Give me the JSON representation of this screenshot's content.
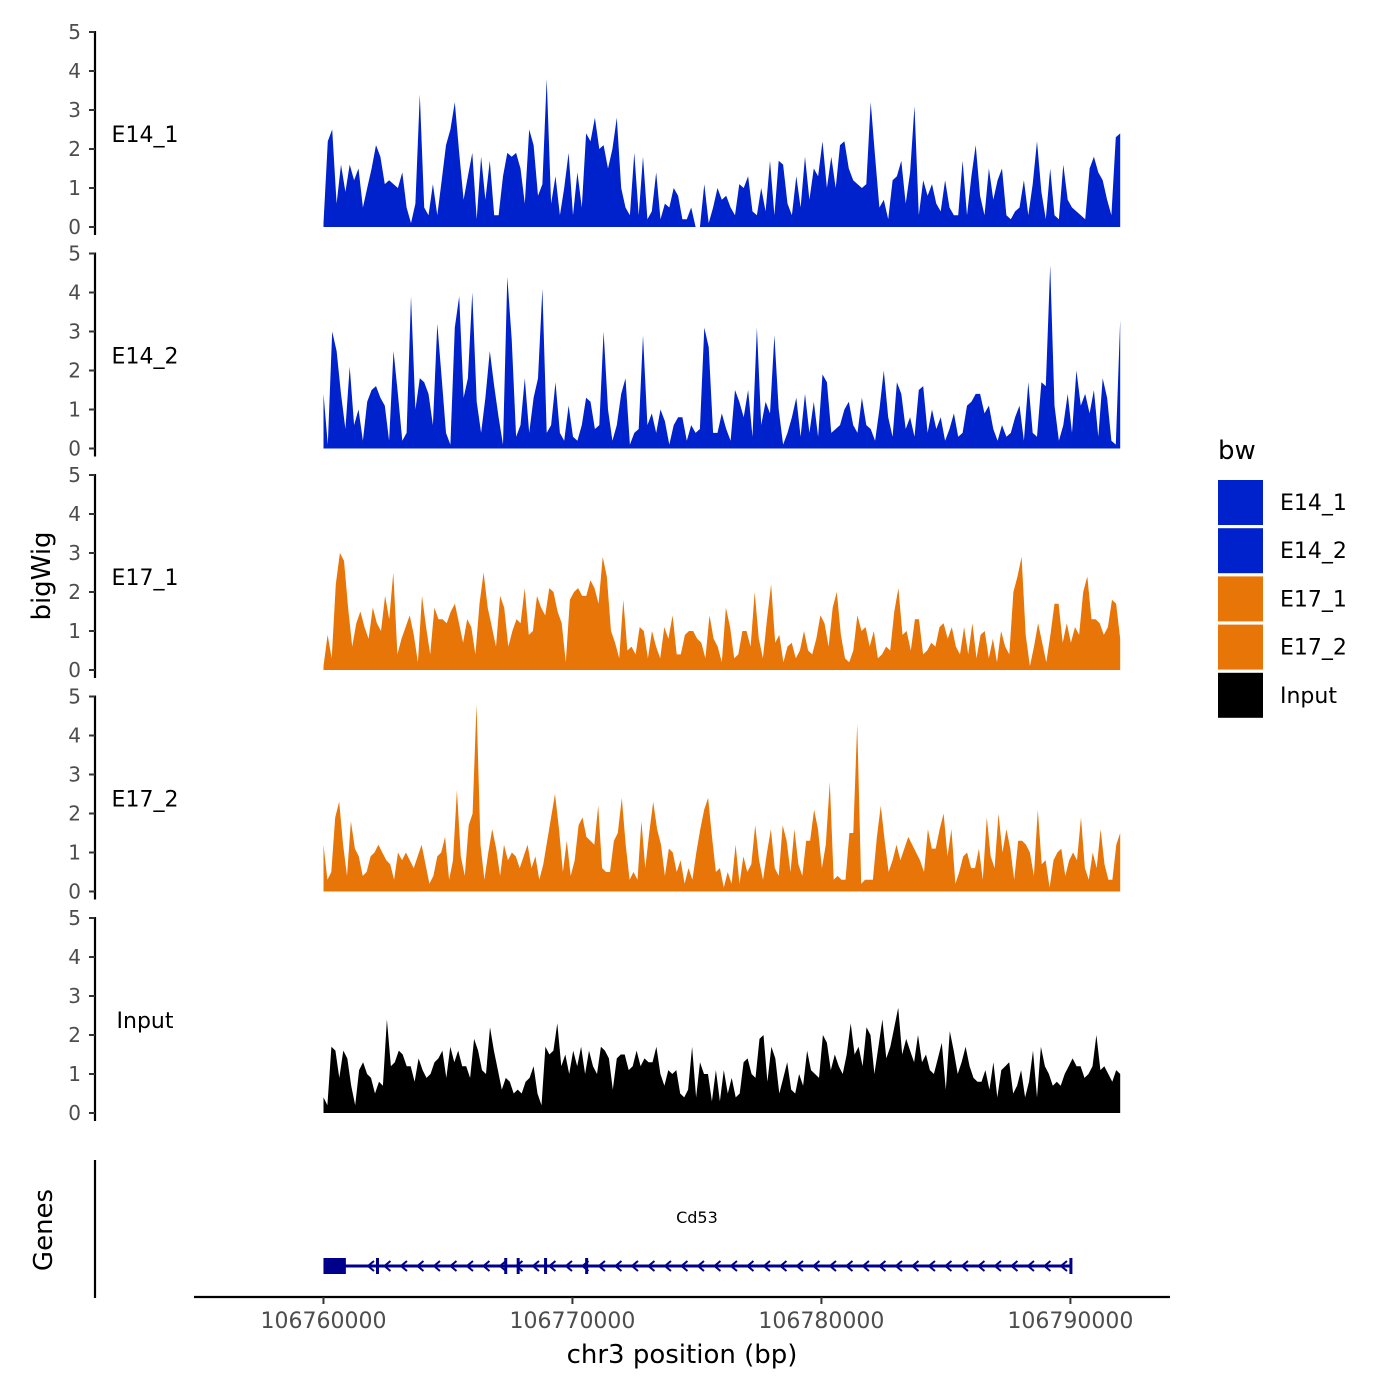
{
  "chart_data": {
    "type": "area",
    "chromosome": "chr3",
    "xlabel": "chr3 position (bp)",
    "ylabel": "bigWig",
    "genes_label": "Genes",
    "xlim": [
      106754800,
      106794000
    ],
    "x_ticks": [
      106760000,
      106770000,
      106780000,
      106790000
    ],
    "x_tick_labels": [
      "106760000",
      "106770000",
      "106780000",
      "106790000"
    ],
    "ylim": [
      0,
      5
    ],
    "y_ticks": [
      0,
      1,
      2,
      3,
      4,
      5
    ],
    "y_tick_labels": [
      "0",
      "1",
      "2",
      "3",
      "4",
      "5"
    ],
    "x_start": 106760000,
    "x_end": 106792000,
    "legend": {
      "title": "bw",
      "entries": [
        {
          "label": "E14_1",
          "color": "#0022CC"
        },
        {
          "label": "E14_2",
          "color": "#0022CC"
        },
        {
          "label": "E17_1",
          "color": "#E87507"
        },
        {
          "label": "E17_2",
          "color": "#E87507"
        },
        {
          "label": "Input",
          "color": "#000000"
        }
      ]
    },
    "series": [
      {
        "name": "E14_1",
        "color": "#0022CC",
        "values": [
          0.1,
          2.2,
          2.5,
          0.6,
          1.6,
          0.9,
          1.6,
          1.2,
          1.5,
          0.5,
          1.0,
          1.5,
          2.1,
          1.8,
          1.1,
          1.2,
          1.1,
          1.0,
          1.4,
          0.5,
          0.1,
          0.6,
          3.4,
          0.5,
          0.3,
          1.1,
          0.3,
          1.2,
          2.1,
          2.5,
          3.2,
          1.9,
          0.7,
          1.3,
          1.9,
          0.2,
          1.8,
          0.7,
          1.7,
          0.3,
          0.3,
          1.3,
          1.9,
          1.8,
          1.9,
          1.5,
          0.6,
          2.5,
          2.1,
          0.8,
          1.1,
          3.8,
          0.6,
          1.3,
          0.3,
          1.0,
          1.9,
          0.3,
          1.4,
          0.5,
          2.4,
          2.2,
          2.8,
          2.0,
          2.1,
          1.5,
          2.0,
          2.8,
          1.0,
          0.5,
          0.3,
          1.9,
          0.3,
          1.8,
          0.2,
          0.4,
          1.4,
          0.2,
          0.6,
          0.5,
          1.0,
          0.8,
          0.2,
          0.2,
          0.5,
          0.0,
          0.0,
          1.1,
          0.1,
          0.5,
          1.0,
          0.7,
          0.8,
          0.5,
          0.3,
          1.1,
          1.0,
          1.3,
          0.4,
          0.3,
          1.0,
          0.4,
          1.7,
          0.3,
          1.7,
          1.6,
          0.6,
          0.3,
          1.3,
          0.5,
          1.8,
          0.7,
          1.5,
          1.3,
          2.2,
          1.0,
          1.8,
          1.0,
          2.1,
          2.2,
          1.5,
          1.2,
          1.1,
          1.0,
          1.1,
          3.2,
          1.8,
          0.5,
          0.7,
          0.2,
          1.2,
          1.3,
          1.7,
          0.6,
          1.4,
          3.1,
          0.3,
          1.2,
          0.8,
          1.1,
          0.6,
          0.4,
          1.2,
          0.5,
          0.3,
          0.3,
          1.7,
          0.3,
          1.3,
          2.1,
          0.8,
          0.3,
          1.5,
          0.7,
          1.2,
          1.5,
          0.3,
          0.2,
          0.4,
          0.5,
          1.2,
          0.3,
          1.1,
          2.2,
          0.9,
          0.2,
          1.5,
          0.3,
          0.2,
          1.6,
          0.7,
          0.5,
          0.4,
          0.3,
          0.2,
          1.5,
          1.8,
          1.4,
          1.2,
          0.7,
          0.3,
          2.3,
          2.4
        ]
      },
      {
        "name": "E14_2",
        "color": "#0022CC",
        "values": [
          1.4,
          0.1,
          3.0,
          2.5,
          1.4,
          0.5,
          2.1,
          0.6,
          1.0,
          0.2,
          1.2,
          1.5,
          1.6,
          1.3,
          1.1,
          0.2,
          2.5,
          1.4,
          0.2,
          0.4,
          3.9,
          1.0,
          1.8,
          1.7,
          1.4,
          0.6,
          3.2,
          1.8,
          0.4,
          0.1,
          3.1,
          3.9,
          1.3,
          1.8,
          4.0,
          1.2,
          0.4,
          1.3,
          2.5,
          1.6,
          0.8,
          0.1,
          4.4,
          2.8,
          0.3,
          0.6,
          1.8,
          0.4,
          1.3,
          1.8,
          4.1,
          0.4,
          0.6,
          1.7,
          0.4,
          0.2,
          1.1,
          0.3,
          0.2,
          0.6,
          1.3,
          1.2,
          0.5,
          0.6,
          3.0,
          1.0,
          0.2,
          0.6,
          1.4,
          1.8,
          0.1,
          0.4,
          0.5,
          2.9,
          0.6,
          0.9,
          0.4,
          1.0,
          0.7,
          0.1,
          0.6,
          0.8,
          0.8,
          0.2,
          0.6,
          0.4,
          0.5,
          3.1,
          2.6,
          0.4,
          0.4,
          0.9,
          0.5,
          0.2,
          1.5,
          1.2,
          0.8,
          1.5,
          0.3,
          3.1,
          0.6,
          1.2,
          0.9,
          2.9,
          1.0,
          0.1,
          0.4,
          0.8,
          1.3,
          0.3,
          1.4,
          0.4,
          1.2,
          0.3,
          1.9,
          1.7,
          0.4,
          0.5,
          0.6,
          1.0,
          1.2,
          0.6,
          0.4,
          1.3,
          0.6,
          0.5,
          0.2,
          1.0,
          2.0,
          0.8,
          0.3,
          1.7,
          1.4,
          0.5,
          0.8,
          0.3,
          1.5,
          1.6,
          0.4,
          1.0,
          0.5,
          0.8,
          0.2,
          0.5,
          0.9,
          0.3,
          0.4,
          1.1,
          1.2,
          1.4,
          1.4,
          0.9,
          1.1,
          0.5,
          0.2,
          0.6,
          0.3,
          0.4,
          0.8,
          1.1,
          0.2,
          1.7,
          0.4,
          0.3,
          1.7,
          1.6,
          4.7,
          1.1,
          0.2,
          0.6,
          1.4,
          0.4,
          2.0,
          1.1,
          1.4,
          0.9,
          1.5,
          0.3,
          1.8,
          1.3,
          0.2,
          0.1,
          3.3
        ]
      },
      {
        "name": "E17_1",
        "color": "#E87507",
        "values": [
          0.1,
          0.9,
          0.3,
          2.2,
          3.0,
          2.8,
          1.6,
          0.6,
          1.2,
          1.5,
          1.1,
          0.8,
          1.6,
          1.2,
          1.0,
          1.9,
          1.3,
          2.5,
          0.4,
          0.8,
          1.1,
          1.4,
          0.9,
          0.2,
          1.9,
          1.1,
          0.4,
          1.6,
          1.3,
          1.3,
          1.2,
          1.5,
          1.7,
          1.2,
          0.7,
          1.3,
          1.1,
          0.4,
          1.7,
          2.5,
          1.6,
          1.1,
          0.6,
          1.9,
          1.6,
          0.6,
          1.0,
          1.3,
          1.2,
          2.1,
          0.9,
          1.0,
          1.9,
          1.6,
          1.4,
          2.1,
          2.0,
          1.5,
          1.2,
          0.2,
          1.8,
          2.0,
          2.1,
          1.9,
          1.9,
          2.3,
          2.1,
          1.7,
          2.9,
          2.4,
          1.0,
          0.7,
          0.3,
          1.8,
          0.5,
          0.6,
          0.4,
          1.1,
          1.0,
          0.3,
          1.0,
          0.6,
          0.3,
          1.1,
          0.8,
          1.4,
          0.4,
          0.4,
          0.9,
          1.0,
          1.0,
          0.8,
          0.7,
          0.3,
          1.4,
          0.8,
          0.6,
          0.2,
          1.6,
          1.1,
          0.3,
          0.4,
          1.0,
          1.0,
          0.6,
          2.0,
          0.8,
          0.3,
          1.3,
          2.2,
          0.7,
          0.9,
          0.2,
          0.6,
          0.7,
          0.3,
          0.5,
          1.0,
          0.5,
          0.4,
          0.8,
          1.4,
          1.2,
          0.6,
          1.6,
          2.0,
          0.9,
          0.3,
          0.2,
          0.5,
          1.4,
          1.0,
          1.1,
          0.6,
          1.0,
          0.3,
          0.4,
          0.6,
          0.5,
          1.5,
          2.1,
          0.9,
          1.0,
          0.5,
          1.3,
          1.3,
          0.4,
          0.5,
          0.7,
          0.6,
          1.1,
          1.2,
          0.8,
          1.1,
          0.6,
          0.4,
          1.1,
          0.4,
          1.2,
          0.3,
          0.9,
          1.0,
          0.3,
          0.8,
          0.2,
          1.0,
          0.6,
          0.4,
          2.0,
          2.4,
          2.9,
          0.9,
          0.1,
          0.6,
          1.2,
          0.7,
          0.2,
          0.9,
          1.7,
          1.7,
          0.7,
          1.2,
          0.7,
          1.1,
          0.9,
          2.0,
          2.4,
          1.3,
          1.3,
          1.2,
          0.9,
          1.1,
          1.8,
          1.7,
          0.8
        ]
      },
      {
        "name": "E17_2",
        "color": "#E87507",
        "values": [
          1.2,
          0.3,
          0.5,
          1.9,
          2.3,
          1.2,
          0.4,
          1.8,
          1.1,
          0.9,
          0.4,
          0.5,
          0.9,
          1.0,
          1.2,
          1.0,
          0.8,
          0.7,
          0.3,
          1.0,
          0.8,
          1.0,
          0.8,
          0.6,
          0.9,
          1.2,
          0.7,
          0.2,
          0.4,
          0.9,
          1.0,
          1.4,
          0.3,
          0.8,
          2.6,
          0.9,
          0.4,
          1.7,
          2.0,
          4.8,
          1.2,
          0.3,
          1.0,
          1.6,
          1.1,
          0.4,
          1.2,
          0.8,
          1.0,
          0.9,
          0.6,
          0.9,
          1.2,
          0.6,
          0.9,
          0.3,
          0.7,
          1.3,
          1.9,
          2.5,
          1.6,
          0.5,
          1.3,
          0.4,
          0.8,
          1.7,
          1.9,
          1.4,
          1.3,
          1.2,
          2.2,
          0.6,
          0.5,
          0.5,
          1.3,
          1.5,
          2.4,
          1.2,
          0.3,
          0.5,
          0.3,
          1.8,
          0.6,
          1.5,
          2.3,
          1.6,
          1.2,
          0.4,
          1.1,
          1.0,
          0.5,
          0.8,
          0.2,
          0.6,
          0.3,
          1.0,
          1.6,
          2.1,
          2.4,
          1.4,
          0.5,
          0.6,
          0.1,
          0.5,
          0.2,
          1.2,
          0.2,
          0.9,
          0.5,
          0.7,
          1.7,
          0.8,
          0.3,
          1.0,
          1.6,
          0.6,
          0.4,
          1.7,
          1.3,
          0.5,
          1.6,
          0.7,
          0.4,
          1.3,
          1.3,
          2.1,
          1.6,
          0.6,
          1.2,
          2.8,
          0.3,
          0.4,
          0.3,
          0.3,
          1.5,
          1.5,
          4.3,
          0.2,
          0.3,
          0.3,
          0.3,
          1.4,
          2.2,
          1.3,
          0.5,
          0.8,
          1.2,
          0.8,
          1.1,
          1.4,
          1.2,
          1.0,
          0.8,
          0.5,
          1.6,
          1.1,
          1.1,
          1.6,
          2.0,
          0.9,
          1.6,
          0.2,
          0.5,
          0.9,
          1.0,
          0.6,
          0.6,
          1.1,
          0.3,
          1.9,
          0.9,
          0.6,
          2.0,
          1.0,
          1.6,
          1.1,
          0.3,
          1.3,
          1.3,
          1.2,
          1.0,
          0.4,
          2.1,
          0.7,
          0.8,
          0.1,
          0.8,
          1.0,
          1.1,
          0.4,
          0.8,
          1.0,
          0.8,
          1.9,
          0.6,
          0.3,
          1.0,
          0.6,
          1.6,
          0.7,
          0.3,
          0.3,
          1.2,
          1.5
        ]
      },
      {
        "name": "Input",
        "color": "#000000",
        "values": [
          0.4,
          0.2,
          1.7,
          1.6,
          0.9,
          1.6,
          1.4,
          0.7,
          0.2,
          1.1,
          1.3,
          1.0,
          0.9,
          0.5,
          0.8,
          0.7,
          2.4,
          1.2,
          1.3,
          1.6,
          1.5,
          1.2,
          1.2,
          0.8,
          1.4,
          1.1,
          0.9,
          1.0,
          1.3,
          1.4,
          1.6,
          0.9,
          1.7,
          1.3,
          1.6,
          1.2,
          1.2,
          0.9,
          1.9,
          1.6,
          1.1,
          1.0,
          2.2,
          1.6,
          1.1,
          0.6,
          0.9,
          0.8,
          0.5,
          0.6,
          0.5,
          0.8,
          0.9,
          1.2,
          0.5,
          0.2,
          1.7,
          1.5,
          1.6,
          2.3,
          1.2,
          1.5,
          1.0,
          1.6,
          1.2,
          1.7,
          1.0,
          1.6,
          1.2,
          1.0,
          1.7,
          1.6,
          1.4,
          0.6,
          1.4,
          1.5,
          1.5,
          1.1,
          1.2,
          1.6,
          1.2,
          1.4,
          1.3,
          1.3,
          1.7,
          1.0,
          0.7,
          1.1,
          1.0,
          1.1,
          0.5,
          0.4,
          0.6,
          1.7,
          0.4,
          1.3,
          1.0,
          1.0,
          0.3,
          1.1,
          0.3,
          1.1,
          0.5,
          0.9,
          0.4,
          0.5,
          1.3,
          1.4,
          1.0,
          0.9,
          1.9,
          2.0,
          0.8,
          1.7,
          1.4,
          0.5,
          0.9,
          1.3,
          0.6,
          0.5,
          1.0,
          0.7,
          1.6,
          1.1,
          1.0,
          0.9,
          2.0,
          1.8,
          1.1,
          1.5,
          1.2,
          1.0,
          1.5,
          2.3,
          1.5,
          1.7,
          1.2,
          2.2,
          2.0,
          1.0,
          1.7,
          2.4,
          1.4,
          1.7,
          2.2,
          2.7,
          1.5,
          1.9,
          1.6,
          1.3,
          2.0,
          1.3,
          1.5,
          1.1,
          1.0,
          1.4,
          1.8,
          0.6,
          2.1,
          1.6,
          1.0,
          1.3,
          1.7,
          1.2,
          0.9,
          0.8,
          0.8,
          1.1,
          0.6,
          1.3,
          0.4,
          1.1,
          1.2,
          1.3,
          0.5,
          0.7,
          1.1,
          0.4,
          0.8,
          1.6,
          0.4,
          1.7,
          1.2,
          1.0,
          0.7,
          0.8,
          0.7,
          1.0,
          1.2,
          1.4,
          1.2,
          1.2,
          0.9,
          1.0,
          1.2,
          2.0,
          1.1,
          1.2,
          1.0,
          0.8,
          1.1,
          1.0
        ]
      }
    ],
    "genes": [
      {
        "name": "Cd53",
        "strand": "-",
        "start": 106760000,
        "end": 106790000,
        "exons": [
          [
            106760000,
            106760900
          ],
          [
            106762150,
            106762230
          ],
          [
            106767300,
            106767370
          ],
          [
            106767800,
            106767860
          ],
          [
            106768900,
            106769000
          ],
          [
            106770550,
            106770620
          ],
          [
            106790000,
            106790080
          ]
        ]
      }
    ]
  }
}
